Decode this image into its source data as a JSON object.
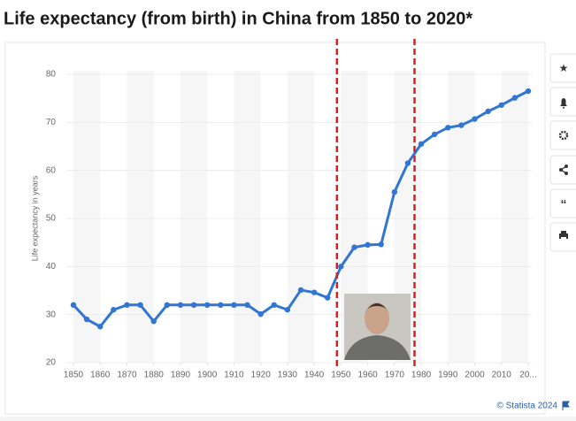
{
  "chart_data": {
    "type": "line",
    "title": "Life expectancy (from birth) in China from 1850 to 2020*",
    "y_label": "Life expectancy in years",
    "source": "© Statista 2024",
    "x": [
      1850,
      1855,
      1860,
      1865,
      1870,
      1875,
      1880,
      1885,
      1890,
      1895,
      1900,
      1905,
      1910,
      1915,
      1920,
      1925,
      1930,
      1935,
      1940,
      1945,
      1950,
      1955,
      1960,
      1965,
      1970,
      1975,
      1980,
      1985,
      1990,
      1995,
      2000,
      2005,
      2010,
      2015,
      2020
    ],
    "series": [
      {
        "name": "Life expectancy",
        "color": "#3176d1",
        "values": [
          32,
          29,
          27.5,
          31,
          32,
          32,
          28.6,
          32,
          32,
          32,
          32,
          32,
          32,
          32,
          30.1,
          32,
          31,
          35.1,
          34.6,
          33.5,
          40,
          44,
          44.5,
          44.6,
          55.5,
          61.5,
          65.5,
          67.5,
          68.9,
          69.4,
          70.7,
          72.3,
          73.6,
          75.1,
          76.5
        ]
      }
    ],
    "xlim": [
      1850,
      2020
    ],
    "xticks": [
      1850,
      1860,
      1870,
      1880,
      1890,
      1900,
      1910,
      1920,
      1930,
      1940,
      1950,
      1960,
      1970,
      1980,
      1990,
      2000,
      2010,
      {
        "value": 2020,
        "label": "20..."
      }
    ],
    "ylim": [
      20,
      80
    ],
    "yticks": [
      20,
      30,
      40,
      50,
      60,
      70,
      80
    ],
    "reference_lines": {
      "color": "#d62020",
      "x": [
        1948.5,
        1977.5
      ]
    },
    "grid": true
  }
}
